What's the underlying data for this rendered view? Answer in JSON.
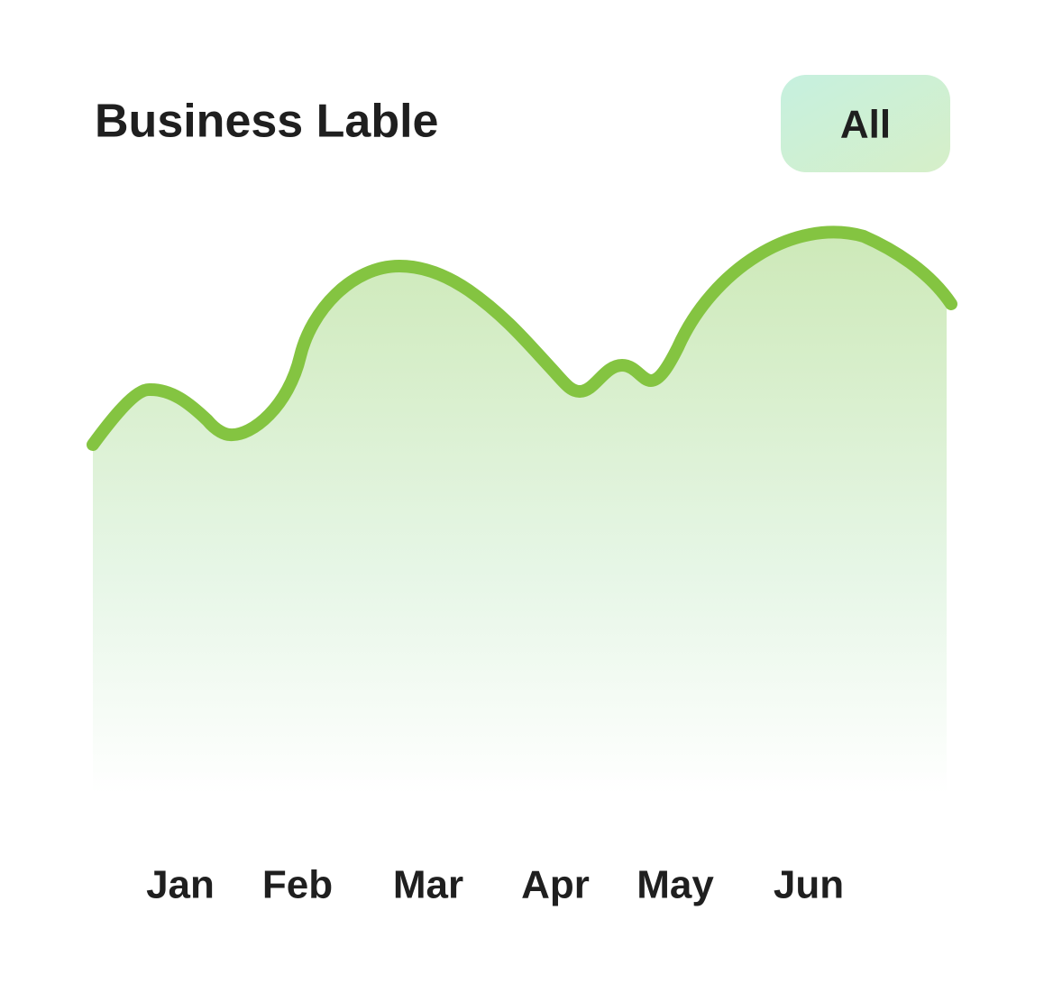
{
  "header": {
    "title": "Business Lable",
    "filter_button": "All"
  },
  "x_axis": {
    "labels": [
      "Jan",
      "Feb",
      "Mar",
      "Apr",
      "May",
      "Jun"
    ]
  }
}
